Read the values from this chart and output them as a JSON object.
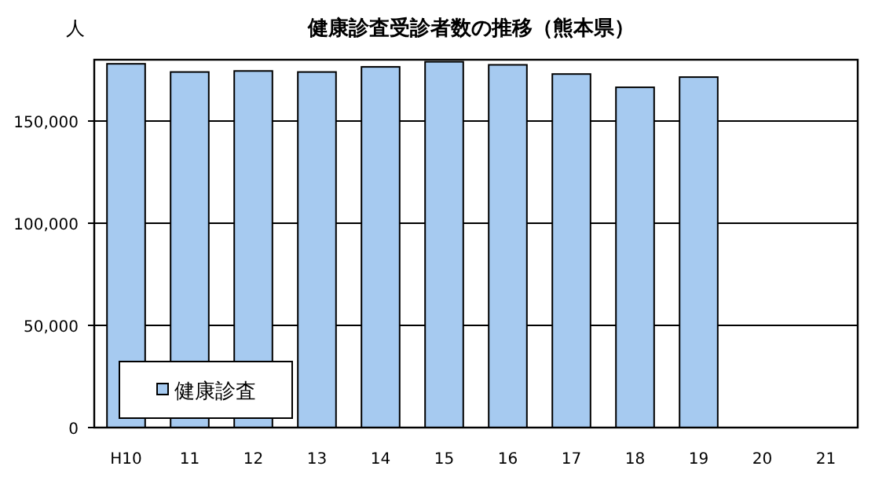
{
  "chart_data": {
    "type": "bar",
    "title": "健康診査受診者数の推移（熊本県）",
    "ylabel": "人",
    "categories": [
      "H10",
      "11",
      "12",
      "13",
      "14",
      "15",
      "16",
      "17",
      "18",
      "19",
      "20",
      "21"
    ],
    "series": [
      {
        "name": "健康診査",
        "color": "#a6caf0",
        "values": [
          178000,
          174000,
          174500,
          174000,
          176500,
          179000,
          177500,
          173000,
          166500,
          171500,
          null,
          null
        ]
      }
    ],
    "ylim": [
      0,
      180000
    ],
    "yticks": [
      {
        "value": 0,
        "label": "0"
      },
      {
        "value": 50000,
        "label": "50,000"
      },
      {
        "value": 100000,
        "label": "100,000"
      },
      {
        "value": 150000,
        "label": "150,000"
      }
    ],
    "grid": "y",
    "legend": "bottom left"
  }
}
